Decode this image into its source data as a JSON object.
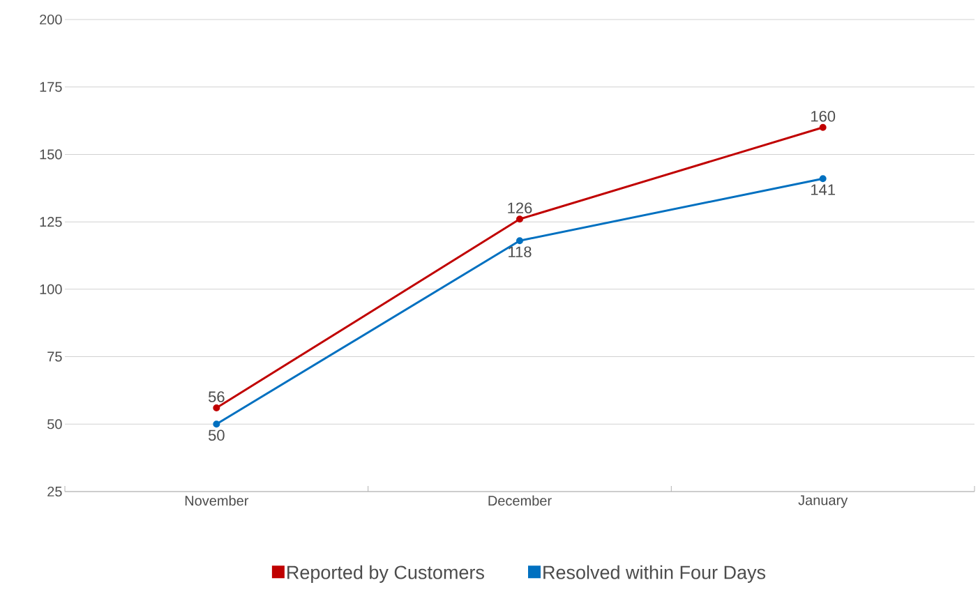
{
  "chart_data": {
    "type": "line",
    "categories": [
      "November",
      "December",
      "January"
    ],
    "series": [
      {
        "name": "Reported by Customers",
        "color": "#c00000",
        "values": [
          56,
          126,
          160
        ]
      },
      {
        "name": "Resolved within Four Days",
        "color": "#0070c0",
        "values": [
          50,
          118,
          141
        ]
      }
    ],
    "ylim": [
      25,
      200
    ],
    "yticks": [
      25,
      50,
      75,
      100,
      125,
      150,
      175,
      200
    ],
    "grid": "y",
    "legend": "bottom",
    "marker": "circle",
    "line_style": "solid",
    "data_labels": true
  }
}
